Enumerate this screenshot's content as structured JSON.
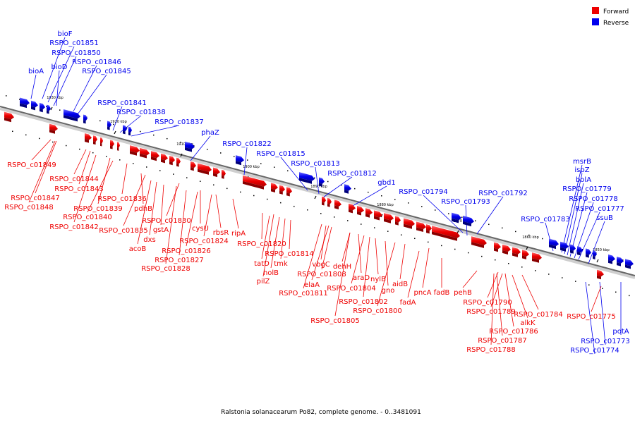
{
  "legend": {
    "forward": {
      "label": "Forward",
      "color": "#ee0000"
    },
    "reverse": {
      "label": "Reverse",
      "color": "#0000ee"
    }
  },
  "caption": "Ralstonia solanacearum Po82, complete genome. - 0..3481091",
  "ticks": [
    "1930 kbp",
    "1920 kbp",
    "1910 kbp",
    "1900 kbp",
    "1890 kbp",
    "1880 kbp",
    "1870 kbp",
    "1860 kbp",
    "1850 kbp"
  ],
  "reverse_labels": [
    "bioF",
    "RSPO_c01851",
    "RSPO_c01850",
    "bioA",
    "bioD",
    "RSPO_c01846",
    "RSPO_c01845",
    "RSPO_c01841",
    "RSPO_c01838",
    "RSPO_c01837",
    "phaZ",
    "RSPO_c01822",
    "RSPO_c01815",
    "RSPO_c01813",
    "RSPO_c01812",
    "gbd1",
    "RSPO_c01794",
    "RSPO_c01792",
    "RSPO_c01793",
    "msrB",
    "ispZ",
    "bolA",
    "RSPO_c01779",
    "RSPO_c01778",
    "RSPO_c01777",
    "RSPO_c01783",
    "ssuB",
    "potA",
    "RSPO_c01773",
    "RSPO_c01774"
  ],
  "forward_labels": [
    "RSPO_c01849",
    "RSPO_c01844",
    "RSPO_c01843",
    "RSPO_c01847",
    "RSPO_c01848",
    "RSPO_c01836",
    "RSPO_c01839",
    "pdhB",
    "RSPO_c01840",
    "RSPO_c01842",
    "RSPO_c01830",
    "RSPO_c01835",
    "gstA",
    "dxs",
    "acoB",
    "cysU",
    "rbsR",
    "RSPO_c01824",
    "ripA",
    "RSPO_c01826",
    "RSPO_c01827",
    "RSPO_c01828",
    "RSPO_c01820",
    "RSPO_c01814",
    "tatD",
    "tmk",
    "holB",
    "pilZ",
    "vbgC",
    "RSPO_c01808",
    "elaA",
    "RSPO_c01811",
    "dehH",
    "araD",
    "RSPO_c01804",
    "nylB",
    "gno",
    "RSPO_c01802",
    "RSPO_c01800",
    "RSPO_c01805",
    "aidB",
    "fadA",
    "pncA",
    "fadB",
    "pehB",
    "RSPO_c01790",
    "RSPO_c01789",
    "RSPO_c01784",
    "alkK",
    "RSPO_c01786",
    "RSPO_c01787",
    "RSPO_c01788",
    "RSPO_c01775"
  ]
}
